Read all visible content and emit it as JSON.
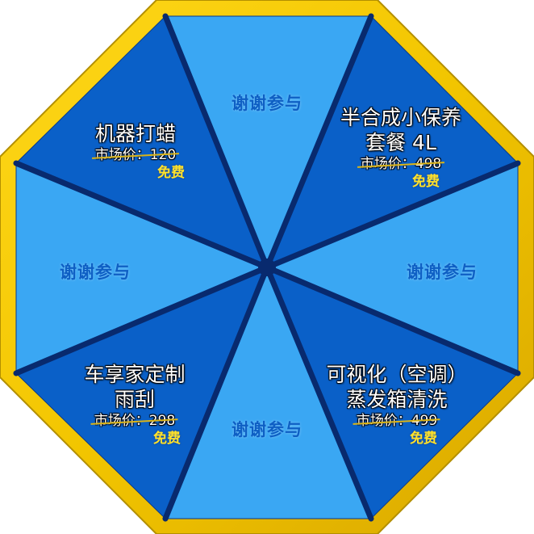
{
  "colors": {
    "frame": "#f2c500",
    "frame_dark": "#b38f00",
    "light_segment": "#3aa7f3",
    "dark_segment": "#0a60c8",
    "spoke": "#082a6e",
    "thanks_text": "#0e5fc4",
    "free_text": "#ffe22b",
    "strike": "#d9b318"
  },
  "segments": [
    {
      "id": "top",
      "type": "thanks",
      "text": "谢谢参与"
    },
    {
      "id": "top-right",
      "type": "prize",
      "name_lines": [
        "半合成小保养",
        "套餐 4L"
      ],
      "price": "市场价：498",
      "free": "免费"
    },
    {
      "id": "right",
      "type": "thanks",
      "text": "谢谢参与"
    },
    {
      "id": "bottom-right",
      "type": "prize",
      "name_lines": [
        "可视化（空调）",
        "蒸发箱清洗"
      ],
      "price": "市场价：499",
      "free": "免费"
    },
    {
      "id": "bottom",
      "type": "thanks",
      "text": "谢谢参与"
    },
    {
      "id": "bottom-left",
      "type": "prize",
      "name_lines": [
        "车享家定制",
        "雨刮"
      ],
      "price": "市场价：298",
      "free": "免费"
    },
    {
      "id": "left",
      "type": "thanks",
      "text": "谢谢参与"
    },
    {
      "id": "top-left",
      "type": "prize",
      "name_lines": [
        "机器打蜡"
      ],
      "price": "市场价：120",
      "free": "免费"
    }
  ]
}
